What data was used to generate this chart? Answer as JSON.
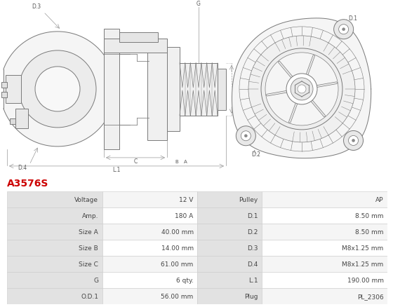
{
  "title": "A3576S",
  "title_color": "#cc0000",
  "table_rows": [
    [
      "Voltage",
      "12 V",
      "Pulley",
      "AP"
    ],
    [
      "Amp.",
      "180 A",
      "D.1",
      "8.50 mm"
    ],
    [
      "Size A",
      "40.00 mm",
      "D.2",
      "8.50 mm"
    ],
    [
      "Size B",
      "14.00 mm",
      "D.3",
      "M8x1.25 mm"
    ],
    [
      "Size C",
      "61.00 mm",
      "D.4",
      "M8x1.25 mm"
    ],
    [
      "G",
      "6 qty.",
      "L.1",
      "190.00 mm"
    ],
    [
      "O.D.1",
      "56.00 mm",
      "Plug",
      "PL_2306"
    ]
  ],
  "header_bg": "#e2e2e2",
  "row_bg_odd": "#f5f5f5",
  "row_bg_even": "#ffffff",
  "border_color": "#cccccc",
  "text_color": "#444444",
  "lc": "#7a7a7a",
  "dim_lc": "#999999"
}
